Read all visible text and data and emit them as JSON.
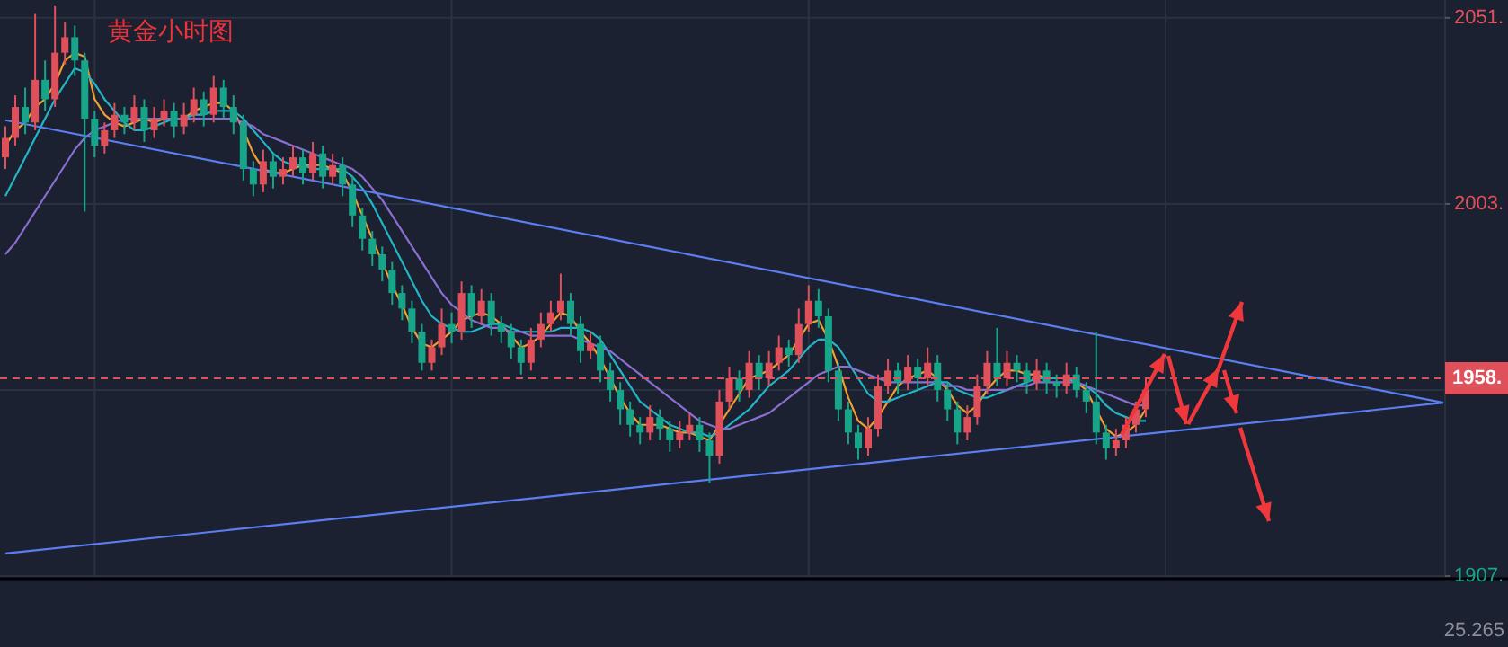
{
  "chart_data": {
    "type": "candlestick",
    "title": "黄金小时图",
    "categories": [
      null,
      null,
      null,
      null,
      null,
      null,
      null,
      null,
      null,
      null,
      null,
      null,
      null,
      null,
      null,
      null,
      null,
      null,
      null,
      null,
      null,
      null,
      null,
      null,
      null,
      null,
      null,
      null,
      null,
      null,
      null,
      null,
      null,
      null,
      null,
      null,
      null,
      null,
      null,
      null,
      null,
      null,
      null,
      null,
      null,
      null,
      null,
      null,
      null,
      null,
      null,
      null,
      null,
      null,
      null,
      null,
      null,
      null,
      null,
      null,
      null,
      null,
      null,
      null,
      null,
      null,
      null,
      null,
      null,
      null,
      null,
      null,
      null,
      null,
      null,
      null,
      null,
      null,
      null,
      null,
      null,
      null,
      null,
      null,
      null,
      null,
      null,
      null,
      null,
      null,
      null,
      null,
      null,
      null,
      null,
      null,
      null,
      null,
      null,
      null,
      null,
      null,
      null,
      null,
      null,
      null,
      null,
      null,
      null,
      null,
      null,
      null,
      null,
      null,
      null,
      null,
      null,
      null,
      null,
      null,
      null,
      null,
      null,
      null,
      null,
      null,
      null,
      null,
      null,
      null,
      null,
      null,
      null,
      null,
      null,
      null,
      null,
      null,
      null,
      null,
      null,
      null,
      null,
      null,
      null,
      null
    ],
    "ohlc": [
      [
        2015,
        2023,
        2012,
        2020
      ],
      [
        2020,
        2031,
        2018,
        2028
      ],
      [
        2028,
        2033,
        2021,
        2024
      ],
      [
        2024,
        2052,
        2022,
        2035
      ],
      [
        2035,
        2040,
        2027,
        2030
      ],
      [
        2030,
        2054,
        2028,
        2042
      ],
      [
        2042,
        2050,
        2039,
        2046
      ],
      [
        2046,
        2049,
        2036,
        2040
      ],
      [
        2040,
        2042,
        2001,
        2025
      ],
      [
        2025,
        2027,
        2015,
        2018
      ],
      [
        2018,
        2024,
        2016,
        2022
      ],
      [
        2022,
        2029,
        2020,
        2026
      ],
      [
        2026,
        2028,
        2021,
        2024
      ],
      [
        2024,
        2031,
        2022,
        2028
      ],
      [
        2028,
        2030,
        2019,
        2022
      ],
      [
        2022,
        2028,
        2020,
        2025
      ],
      [
        2025,
        2030,
        2023,
        2027
      ],
      [
        2027,
        2029,
        2020,
        2023
      ],
      [
        2023,
        2029,
        2021,
        2026
      ],
      [
        2026,
        2033,
        2024,
        2030
      ],
      [
        2030,
        2032,
        2023,
        2026
      ],
      [
        2026,
        2036,
        2024,
        2033
      ],
      [
        2033,
        2035,
        2025,
        2028
      ],
      [
        2028,
        2031,
        2021,
        2024
      ],
      [
        2024,
        2026,
        2009,
        2012
      ],
      [
        2012,
        2014,
        2005,
        2008
      ],
      [
        2008,
        2017,
        2006,
        2014
      ],
      [
        2014,
        2016,
        2007,
        2010
      ],
      [
        2010,
        2015,
        2008,
        2012
      ],
      [
        2012,
        2018,
        2010,
        2015
      ],
      [
        2015,
        2017,
        2008,
        2011
      ],
      [
        2011,
        2019,
        2009,
        2016
      ],
      [
        2016,
        2018,
        2007,
        2010
      ],
      [
        2010,
        2016,
        2008,
        2013
      ],
      [
        2013,
        2015,
        2005,
        2008
      ],
      [
        2008,
        2010,
        1997,
        2000
      ],
      [
        2000,
        2002,
        1991,
        1994
      ],
      [
        1994,
        1996,
        1987,
        1990
      ],
      [
        1990,
        1992,
        1983,
        1986
      ],
      [
        1986,
        1988,
        1977,
        1980
      ],
      [
        1980,
        1982,
        1973,
        1976
      ],
      [
        1976,
        1978,
        1967,
        1970
      ],
      [
        1970,
        1972,
        1960,
        1962
      ],
      [
        1962,
        1968,
        1960,
        1966
      ],
      [
        1966,
        1976,
        1964,
        1972
      ],
      [
        1972,
        1975,
        1967,
        1970
      ],
      [
        1970,
        1983,
        1968,
        1980
      ],
      [
        1980,
        1982,
        1971,
        1974
      ],
      [
        1974,
        1981,
        1972,
        1978
      ],
      [
        1978,
        1980,
        1969,
        1972
      ],
      [
        1972,
        1974,
        1967,
        1970
      ],
      [
        1970,
        1972,
        1963,
        1966
      ],
      [
        1966,
        1968,
        1959,
        1962
      ],
      [
        1962,
        1971,
        1960,
        1968
      ],
      [
        1968,
        1975,
        1966,
        1972
      ],
      [
        1972,
        1978,
        1970,
        1975
      ],
      [
        1975,
        1985,
        1973,
        1978
      ],
      [
        1978,
        1980,
        1969,
        1972
      ],
      [
        1972,
        1974,
        1962,
        1965
      ],
      [
        1965,
        1970,
        1963,
        1967
      ],
      [
        1967,
        1969,
        1957,
        1960
      ],
      [
        1960,
        1962,
        1952,
        1955
      ],
      [
        1955,
        1957,
        1946,
        1950
      ],
      [
        1950,
        1952,
        1943,
        1946
      ],
      [
        1946,
        1948,
        1941,
        1944
      ],
      [
        1944,
        1951,
        1942,
        1948
      ],
      [
        1948,
        1950,
        1942,
        1945
      ],
      [
        1945,
        1947,
        1939,
        1942
      ],
      [
        1942,
        1947,
        1940,
        1944
      ],
      [
        1944,
        1949,
        1942,
        1946
      ],
      [
        1946,
        1948,
        1939,
        1942
      ],
      [
        1942,
        1944,
        1931,
        1938
      ],
      [
        1938,
        1955,
        1936,
        1952
      ],
      [
        1952,
        1961,
        1950,
        1958
      ],
      [
        1958,
        1960,
        1952,
        1955
      ],
      [
        1955,
        1965,
        1953,
        1962
      ],
      [
        1962,
        1964,
        1955,
        1958
      ],
      [
        1958,
        1965,
        1956,
        1962
      ],
      [
        1962,
        1969,
        1960,
        1966
      ],
      [
        1966,
        1968,
        1961,
        1964
      ],
      [
        1964,
        1976,
        1962,
        1972
      ],
      [
        1972,
        1982,
        1970,
        1978
      ],
      [
        1978,
        1981,
        1971,
        1974
      ],
      [
        1974,
        1976,
        1957,
        1960
      ],
      [
        1960,
        1962,
        1947,
        1950
      ],
      [
        1950,
        1952,
        1941,
        1944
      ],
      [
        1944,
        1946,
        1937,
        1940
      ],
      [
        1940,
        1948,
        1938,
        1945
      ],
      [
        1945,
        1959,
        1943,
        1956
      ],
      [
        1956,
        1963,
        1954,
        1960
      ],
      [
        1960,
        1962,
        1954,
        1957
      ],
      [
        1957,
        1964,
        1955,
        1961
      ],
      [
        1961,
        1963,
        1955,
        1958
      ],
      [
        1958,
        1966,
        1956,
        1962
      ],
      [
        1962,
        1964,
        1952,
        1955
      ],
      [
        1955,
        1957,
        1947,
        1950
      ],
      [
        1950,
        1952,
        1941,
        1944
      ],
      [
        1944,
        1951,
        1942,
        1948
      ],
      [
        1948,
        1959,
        1946,
        1956
      ],
      [
        1956,
        1965,
        1954,
        1962
      ],
      [
        1962,
        1971,
        1956,
        1958
      ],
      [
        1958,
        1965,
        1956,
        1962
      ],
      [
        1962,
        1964,
        1957,
        1960
      ],
      [
        1960,
        1962,
        1954,
        1957
      ],
      [
        1957,
        1963,
        1955,
        1960
      ],
      [
        1960,
        1962,
        1954,
        1957
      ],
      [
        1957,
        1959,
        1953,
        1956
      ],
      [
        1956,
        1962,
        1954,
        1959
      ],
      [
        1959,
        1961,
        1953,
        1955
      ],
      [
        1955,
        1957,
        1949,
        1952
      ],
      [
        1952,
        1970,
        1941,
        1944
      ],
      [
        1944,
        1946,
        1937,
        1940
      ],
      [
        1940,
        1945,
        1938,
        1942
      ],
      [
        1942,
        1948,
        1940,
        1946
      ],
      [
        1946,
        1952,
        1944,
        1950
      ],
      [
        1950,
        1958,
        1948,
        1955
      ],
      null,
      null,
      null,
      null,
      null,
      null,
      null,
      null,
      null,
      null,
      null,
      null,
      null,
      null,
      null,
      null,
      null,
      null,
      null,
      null,
      null,
      null,
      null,
      null,
      null,
      null,
      null,
      null,
      null,
      null
    ],
    "series": [
      {
        "type": "line",
        "color": "#f0a030",
        "values": [
          2018,
          2022,
          2024,
          2028,
          2030,
          2034,
          2040,
          2042,
          2041,
          2030,
          2026,
          2024,
          2023,
          2024,
          2025,
          2024,
          2025,
          2025,
          2025,
          2027,
          2028,
          2029,
          2029,
          2027,
          2022,
          2016,
          2012,
          2011,
          2011,
          2012,
          2013,
          2013,
          2013,
          2012,
          2011,
          2006,
          2000,
          1994,
          1988,
          1982,
          1977,
          1971,
          1967,
          1966,
          1968,
          1970,
          1973,
          1974,
          1975,
          1974,
          1972,
          1969,
          1966,
          1967,
          1969,
          1972,
          1975,
          1974,
          1970,
          1967,
          1963,
          1958,
          1953,
          1949,
          1946,
          1946,
          1946,
          1945,
          1944,
          1944,
          1943,
          1942,
          1946,
          1950,
          1954,
          1958,
          1959,
          1960,
          1962,
          1964,
          1968,
          1972,
          1973,
          1968,
          1961,
          1953,
          1947,
          1945,
          1948,
          1952,
          1956,
          1958,
          1959,
          1960,
          1958,
          1955,
          1951,
          1949,
          1951,
          1955,
          1958,
          1960,
          1960,
          1959,
          1959,
          1958,
          1958,
          1958,
          1957,
          1955,
          1950,
          1945,
          1943,
          1944,
          1946,
          1950,
          null,
          null,
          null,
          null,
          null,
          null,
          null,
          null,
          null,
          null,
          null,
          null,
          null,
          null,
          null,
          null,
          null,
          null,
          null,
          null,
          null,
          null,
          null,
          null,
          null,
          null,
          null,
          null,
          null,
          null
        ]
      },
      {
        "type": "line",
        "color": "#22b5c8",
        "values": [
          2005,
          2010,
          2015,
          2020,
          2025,
          2030,
          2034,
          2038,
          2037,
          2034,
          2030,
          2027,
          2024,
          2022,
          2022,
          2023,
          2024,
          2025,
          2025,
          2026,
          2026,
          2027,
          2027,
          2027,
          2025,
          2022,
          2019,
          2016,
          2014,
          2013,
          2013,
          2012,
          2012,
          2012,
          2012,
          2010,
          2007,
          2003,
          1998,
          1993,
          1988,
          1983,
          1978,
          1974,
          1972,
          1971,
          1970,
          1970,
          1971,
          1972,
          1972,
          1971,
          1970,
          1970,
          1970,
          1970,
          1971,
          1971,
          1971,
          1970,
          1968,
          1964,
          1960,
          1956,
          1952,
          1950,
          1948,
          1946,
          1945,
          1944,
          1944,
          1943,
          1944,
          1946,
          1948,
          1950,
          1953,
          1956,
          1958,
          1960,
          1963,
          1966,
          1968,
          1968,
          1966,
          1962,
          1958,
          1954,
          1952,
          1952,
          1953,
          1954,
          1955,
          1956,
          1957,
          1957,
          1955,
          1954,
          1953,
          1953,
          1954,
          1955,
          1956,
          1957,
          1958,
          1958,
          1958,
          1958,
          1957,
          1956,
          1954,
          1951,
          1949,
          1948,
          1947,
          1947,
          null,
          null,
          null,
          null,
          null,
          null,
          null,
          null,
          null,
          null,
          null,
          null,
          null,
          null,
          null,
          null,
          null,
          null,
          null,
          null,
          null,
          null,
          null,
          null,
          null,
          null,
          null,
          null,
          null,
          null
        ]
      },
      {
        "type": "line",
        "color": "#8a6fd0",
        "values": [
          1990,
          1993,
          1997,
          2001,
          2005,
          2009,
          2013,
          2017,
          2020,
          2022,
          2023,
          2024,
          2025,
          2025,
          2025,
          2025,
          2025,
          2025,
          2025,
          2025,
          2025,
          2025,
          2025,
          2025,
          2024,
          2023,
          2021,
          2020,
          2019,
          2018,
          2017,
          2016,
          2015,
          2014,
          2013,
          2012,
          2010,
          2007,
          2004,
          2000,
          1996,
          1992,
          1988,
          1984,
          1980,
          1977,
          1975,
          1973,
          1972,
          1971,
          1971,
          1970,
          1970,
          1969,
          1969,
          1969,
          1969,
          1969,
          1968,
          1967,
          1966,
          1965,
          1963,
          1961,
          1959,
          1957,
          1955,
          1953,
          1951,
          1949,
          1947,
          1946,
          1945,
          1945,
          1946,
          1947,
          1948,
          1949,
          1951,
          1953,
          1955,
          1957,
          1959,
          1960,
          1961,
          1961,
          1960,
          1959,
          1958,
          1957,
          1957,
          1957,
          1957,
          1957,
          1957,
          1956,
          1956,
          1955,
          1955,
          1955,
          1955,
          1955,
          1956,
          1956,
          1957,
          1957,
          1957,
          1957,
          1957,
          1956,
          1955,
          1954,
          1953,
          1952,
          1951,
          1951,
          null,
          null,
          null,
          null,
          null,
          null,
          null,
          null,
          null,
          null,
          null,
          null,
          null,
          null,
          null,
          null,
          null,
          null,
          null,
          null,
          null,
          null,
          null,
          null,
          null,
          null,
          null,
          null,
          null,
          null
        ]
      },
      {
        "type": "line",
        "color": "#5b7ef0",
        "values": [
          2024.6,
          null,
          null,
          null,
          null,
          null,
          null,
          null,
          null,
          null,
          null,
          null,
          null,
          null,
          null,
          null,
          null,
          null,
          null,
          null,
          null,
          null,
          null,
          null,
          null,
          null,
          null,
          null,
          null,
          null,
          null,
          null,
          null,
          null,
          null,
          null,
          null,
          null,
          null,
          null,
          null,
          null,
          null,
          null,
          null,
          null,
          null,
          null,
          null,
          null,
          null,
          null,
          null,
          null,
          null,
          null,
          null,
          null,
          null,
          null,
          null,
          null,
          null,
          null,
          null,
          null,
          null,
          null,
          null,
          null,
          null,
          null,
          null,
          null,
          null,
          null,
          null,
          null,
          null,
          null,
          null,
          null,
          null,
          null,
          null,
          null,
          null,
          null,
          null,
          null,
          null,
          null,
          null,
          null,
          null,
          null,
          null,
          null,
          null,
          null,
          null,
          null,
          null,
          null,
          null,
          null,
          null,
          null,
          null,
          null,
          null,
          null,
          null,
          null,
          null,
          null,
          null,
          null,
          null,
          null,
          null,
          null,
          null,
          null,
          null,
          null,
          null,
          null,
          null,
          null,
          null,
          null,
          null,
          null,
          null,
          null,
          null,
          null,
          null,
          null,
          null,
          null,
          null,
          null,
          null,
          1951.7
        ]
      },
      {
        "type": "line",
        "color": "#5b7ef0",
        "values": [
          1912.8,
          null,
          null,
          null,
          null,
          null,
          null,
          null,
          null,
          null,
          null,
          null,
          null,
          null,
          null,
          null,
          null,
          null,
          null,
          null,
          null,
          null,
          null,
          null,
          null,
          null,
          null,
          null,
          null,
          null,
          null,
          null,
          null,
          null,
          null,
          null,
          null,
          null,
          null,
          null,
          null,
          null,
          null,
          null,
          null,
          null,
          null,
          null,
          null,
          null,
          null,
          null,
          null,
          null,
          null,
          null,
          null,
          null,
          null,
          null,
          null,
          null,
          null,
          null,
          null,
          null,
          null,
          null,
          null,
          null,
          null,
          null,
          null,
          null,
          null,
          null,
          null,
          null,
          null,
          null,
          null,
          null,
          null,
          null,
          null,
          null,
          null,
          null,
          null,
          null,
          null,
          null,
          null,
          null,
          null,
          null,
          null,
          null,
          null,
          null,
          null,
          null,
          null,
          null,
          null,
          null,
          null,
          null,
          null,
          null,
          null,
          null,
          null,
          null,
          null,
          null,
          null,
          null,
          null,
          null,
          null,
          null,
          null,
          null,
          null,
          null,
          null,
          null,
          null,
          null,
          null,
          null,
          null,
          null,
          null,
          null,
          null,
          null,
          null,
          null,
          null,
          null,
          null,
          null,
          null,
          1951.7
        ]
      }
    ],
    "ylim": [
      1906.3,
      2055.6
    ],
    "yticks": [
      {
        "value": 2051,
        "label": "2051."
      },
      {
        "value": 2003,
        "label": "2003."
      },
      {
        "value": 1955,
        "label": null
      },
      {
        "value": 1907,
        "label": "1907."
      }
    ],
    "ref_lines": [
      {
        "axis": "y",
        "value": 1958,
        "label": "1958.",
        "color": "#e0505a",
        "line_style": "dashed"
      }
    ],
    "grid": true,
    "tick_labels": "y",
    "annotations": [
      "25.265"
    ]
  }
}
